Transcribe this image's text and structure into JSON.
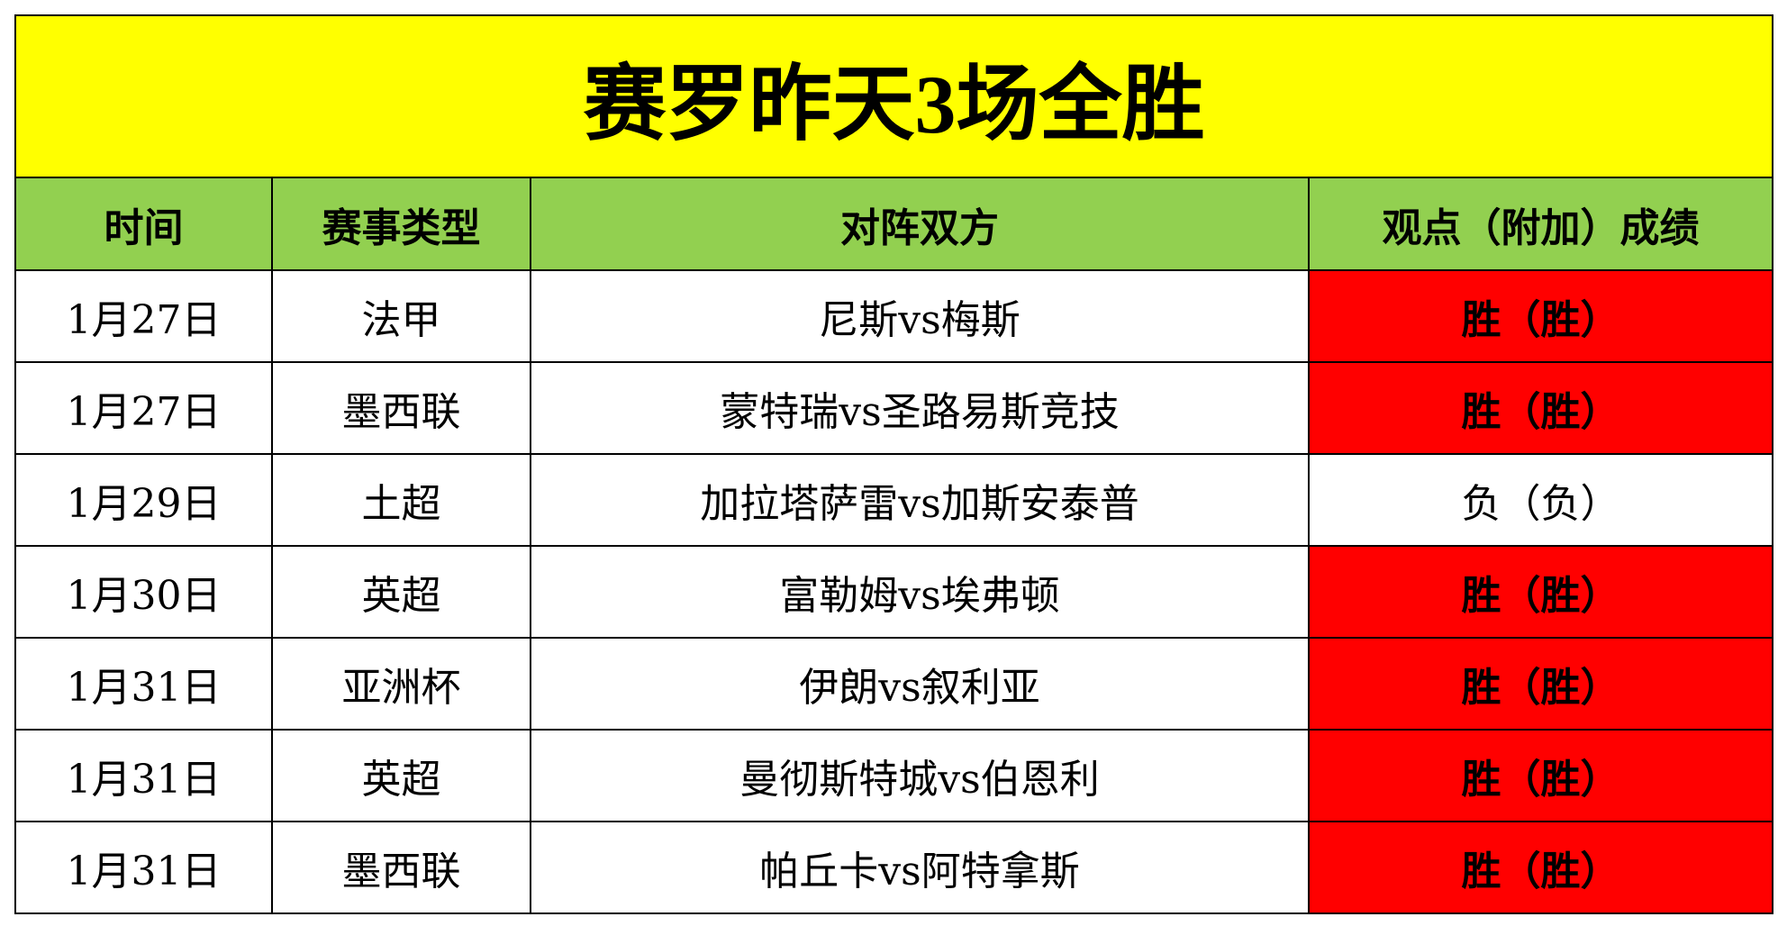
{
  "table": {
    "title": "赛罗昨天3场全胜",
    "headers": [
      "时间",
      "赛事类型",
      "对阵双方",
      "观点（附加）成绩"
    ],
    "rows": [
      {
        "cells": [
          "1月27日",
          "法甲",
          "尼斯vs梅斯",
          "胜（胜）"
        ],
        "result_color": "#ff0000"
      },
      {
        "cells": [
          "1月27日",
          "墨西联",
          "蒙特瑞vs圣路易斯竞技",
          "胜（胜）"
        ],
        "result_color": "#ff0000"
      },
      {
        "cells": [
          "1月29日",
          "土超",
          "加拉塔萨雷vs加斯安泰普",
          "负（负）"
        ],
        "result_color": "#ffffff"
      },
      {
        "cells": [
          "1月30日",
          "英超",
          "富勒姆vs埃弗顿",
          "胜（胜）"
        ],
        "result_color": "#ff0000"
      },
      {
        "cells": [
          "1月31日",
          "亚洲杯",
          "伊朗vs叙利亚",
          "胜（胜）"
        ],
        "result_color": "#ff0000"
      },
      {
        "cells": [
          "1月31日",
          "英超",
          "曼彻斯特城vs伯恩利",
          "胜（胜）"
        ],
        "result_color": "#ff0000"
      },
      {
        "cells": [
          "1月31日",
          "墨西联",
          "帕丘卡vs阿特拿斯",
          "胜（胜）"
        ],
        "result_color": "#ff0000"
      }
    ]
  }
}
